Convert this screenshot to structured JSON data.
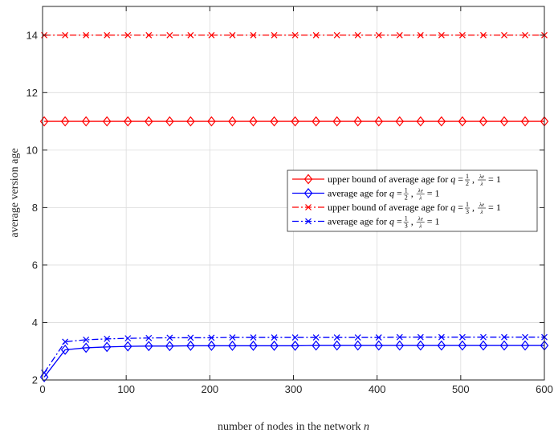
{
  "chart_data": {
    "type": "line",
    "xlabel": "number of nodes in the network n",
    "ylabel": "average version age",
    "xlim": [
      0,
      600
    ],
    "ylim": [
      2,
      15
    ],
    "xticks": [
      0,
      100,
      200,
      300,
      400,
      500,
      600
    ],
    "yticks": [
      2,
      4,
      6,
      8,
      10,
      12,
      14
    ],
    "grid": true,
    "legend_position": "right-middle",
    "x": [
      2,
      27,
      52,
      77,
      102,
      127,
      152,
      177,
      202,
      227,
      252,
      277,
      302,
      327,
      352,
      377,
      402,
      427,
      452,
      477,
      502,
      527,
      552,
      577,
      600
    ],
    "series": [
      {
        "name": "upper bound of average age for q = 1/2, λe/λ = 1",
        "color": "#ff0000",
        "line_style": "solid",
        "marker": "diamond",
        "values": [
          11,
          11,
          11,
          11,
          11,
          11,
          11,
          11,
          11,
          11,
          11,
          11,
          11,
          11,
          11,
          11,
          11,
          11,
          11,
          11,
          11,
          11,
          11,
          11,
          11
        ]
      },
      {
        "name": "average age for q = 1/2, λe/λ = 1",
        "color": "#0000ff",
        "line_style": "solid",
        "marker": "diamond",
        "values": [
          2.1,
          3.05,
          3.12,
          3.15,
          3.17,
          3.18,
          3.18,
          3.19,
          3.19,
          3.19,
          3.19,
          3.19,
          3.19,
          3.2,
          3.2,
          3.2,
          3.2,
          3.2,
          3.2,
          3.2,
          3.2,
          3.2,
          3.2,
          3.2,
          3.2
        ]
      },
      {
        "name": "upper bound of average age for q = 1/3, λe/λ = 1",
        "color": "#ff0000",
        "line_style": "dashdot",
        "marker": "x",
        "values": [
          14,
          14,
          14,
          14,
          14,
          14,
          14,
          14,
          14,
          14,
          14,
          14,
          14,
          14,
          14,
          14,
          14,
          14,
          14,
          14,
          14,
          14,
          14,
          14,
          14
        ]
      },
      {
        "name": "average age for q = 1/3, λe/λ = 1",
        "color": "#0000ff",
        "line_style": "dashdot",
        "marker": "x",
        "values": [
          2.25,
          3.33,
          3.4,
          3.43,
          3.45,
          3.46,
          3.47,
          3.47,
          3.47,
          3.48,
          3.48,
          3.48,
          3.48,
          3.48,
          3.48,
          3.48,
          3.48,
          3.49,
          3.49,
          3.49,
          3.49,
          3.49,
          3.49,
          3.49,
          3.49
        ]
      }
    ],
    "legend_entries": [
      {
        "prefix": "upper bound of average age for ",
        "q_den": "2",
        "frac_num": "λe",
        "frac_den": "λ"
      },
      {
        "prefix": "average age for ",
        "q_den": "2",
        "frac_num": "λe",
        "frac_den": "λ"
      },
      {
        "prefix": "upper bound of average age for ",
        "q_den": "3",
        "frac_num": "λe",
        "frac_den": "λ"
      },
      {
        "prefix": "average age for ",
        "q_den": "3",
        "frac_num": "λe",
        "frac_den": "λ"
      }
    ]
  }
}
